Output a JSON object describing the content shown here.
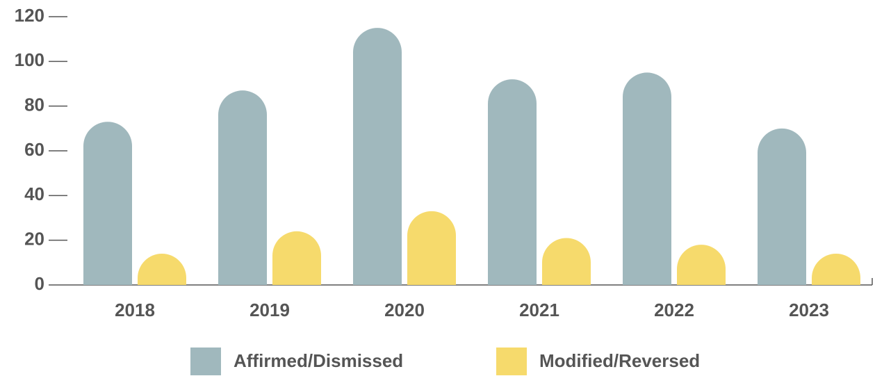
{
  "chart_data": {
    "type": "bar",
    "categories": [
      "2018",
      "2019",
      "2020",
      "2021",
      "2022",
      "2023"
    ],
    "series": [
      {
        "name": "Affirmed/Dismissed",
        "color": "#a0b8bd",
        "values": [
          73,
          87,
          115,
          92,
          95,
          70
        ]
      },
      {
        "name": "Modified/Reversed",
        "color": "#f6da6c",
        "values": [
          14,
          24,
          33,
          21,
          18,
          14
        ]
      }
    ],
    "ylim": [
      0,
      120
    ],
    "yticks": [
      0,
      20,
      40,
      60,
      80,
      100,
      120
    ],
    "grid": false,
    "legend": "bottom"
  }
}
